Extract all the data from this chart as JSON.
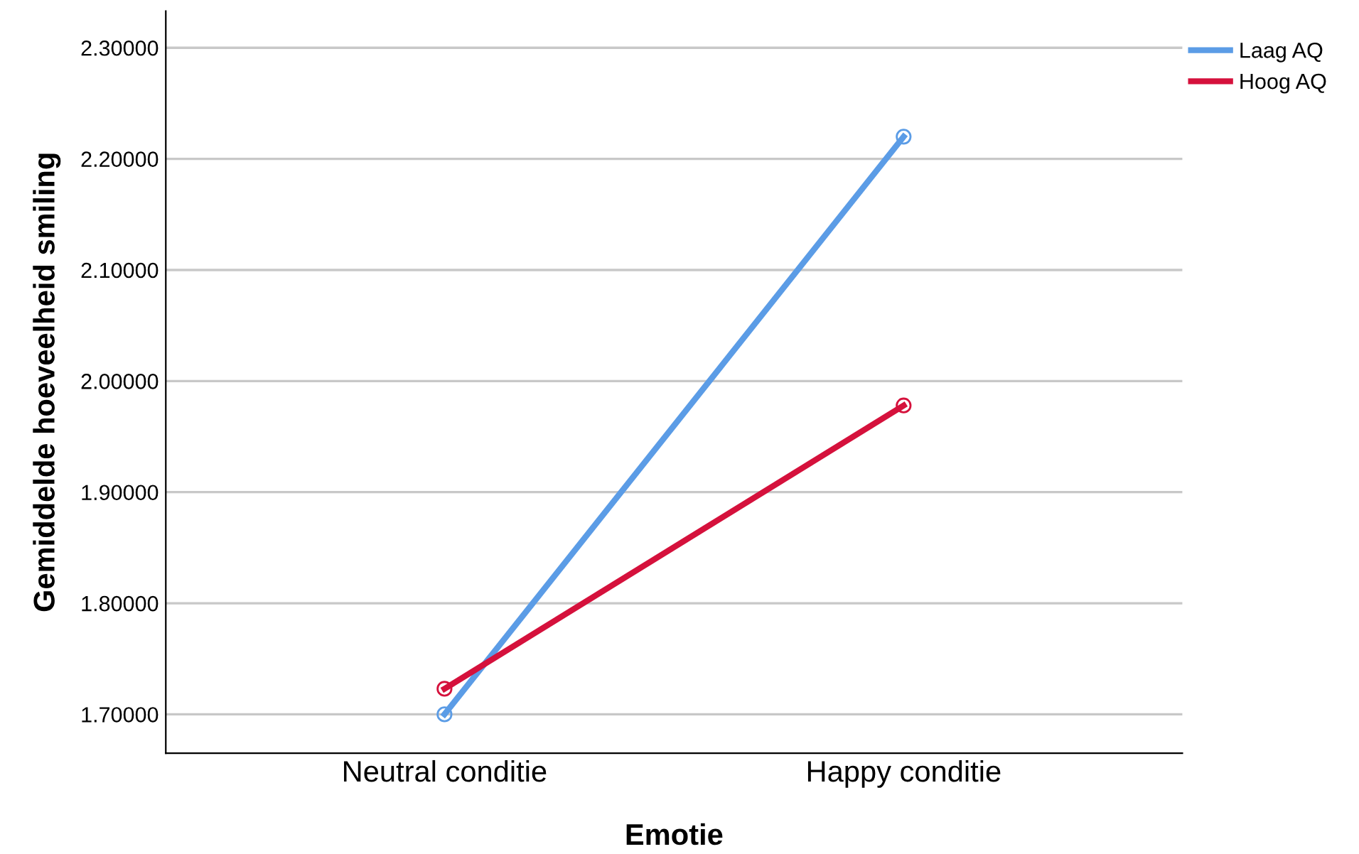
{
  "chart_data": {
    "type": "line",
    "xlabel": "Emotie",
    "ylabel": "Gemiddelde hoeveelheid smiling",
    "categories": [
      "Neutral conditie",
      "Happy conditie"
    ],
    "series": [
      {
        "name": "Laag AQ",
        "color": "#5b9ce6",
        "values": [
          1.7,
          2.22
        ]
      },
      {
        "name": "Hoog AQ",
        "color": "#d5113c",
        "values": [
          1.723,
          1.978
        ]
      }
    ],
    "ylim": [
      1.665,
      2.333
    ],
    "yticks": [
      {
        "value": 1.7,
        "label": "1.70000"
      },
      {
        "value": 1.8,
        "label": "1.80000"
      },
      {
        "value": 1.9,
        "label": "1.90000"
      },
      {
        "value": 2.0,
        "label": "2.00000"
      },
      {
        "value": 2.1,
        "label": "2.10000"
      },
      {
        "value": 2.2,
        "label": "2.20000"
      },
      {
        "value": 2.3,
        "label": "2.30000"
      }
    ],
    "grid": "y",
    "legend": "top right",
    "marker": "circle",
    "line_style": "solid"
  }
}
